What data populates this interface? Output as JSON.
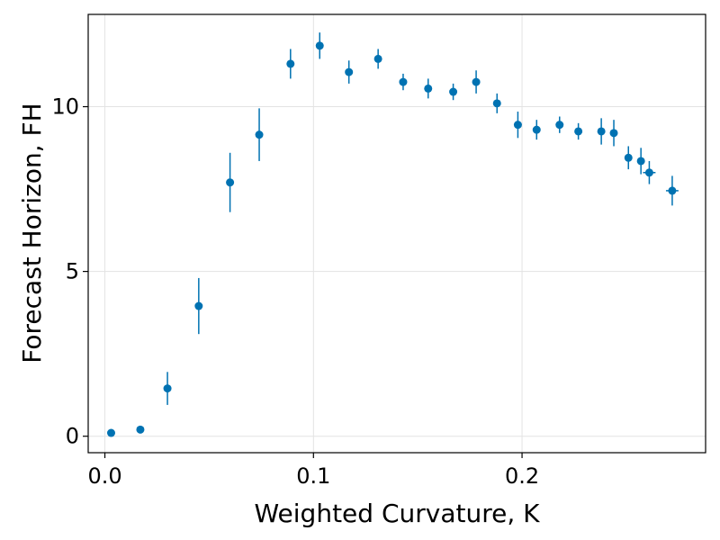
{
  "chart_data": {
    "type": "scatter",
    "title": "",
    "xlabel": "Weighted Curvature, K",
    "ylabel": "Forecast Horizon, FH",
    "xlim": [
      -0.008,
      0.288
    ],
    "ylim": [
      -0.5,
      12.8
    ],
    "x_ticks": [
      0.0,
      0.1,
      0.2
    ],
    "x_tick_labels": [
      "0.0",
      "0.1",
      "0.2"
    ],
    "y_ticks": [
      0,
      5,
      10
    ],
    "y_tick_labels": [
      "0",
      "5",
      "10"
    ],
    "grid": true,
    "legend": "none",
    "color": "#0072b2",
    "points": [
      {
        "x": 0.003,
        "y": 0.1,
        "yerr": 0.0
      },
      {
        "x": 0.017,
        "y": 0.2,
        "yerr": 0.0
      },
      {
        "x": 0.03,
        "y": 1.45,
        "yerr": 0.5
      },
      {
        "x": 0.045,
        "y": 3.95,
        "yerr": 0.85
      },
      {
        "x": 0.06,
        "y": 7.7,
        "yerr": 0.9
      },
      {
        "x": 0.074,
        "y": 9.15,
        "yerr": 0.8
      },
      {
        "x": 0.089,
        "y": 11.3,
        "yerr": 0.45
      },
      {
        "x": 0.103,
        "y": 11.85,
        "yerr": 0.4
      },
      {
        "x": 0.117,
        "y": 11.05,
        "yerr": 0.35
      },
      {
        "x": 0.131,
        "y": 11.45,
        "yerr": 0.3
      },
      {
        "x": 0.143,
        "y": 10.75,
        "yerr": 0.25
      },
      {
        "x": 0.155,
        "y": 10.55,
        "yerr": 0.3
      },
      {
        "x": 0.167,
        "y": 10.45,
        "yerr": 0.25
      },
      {
        "x": 0.178,
        "y": 10.75,
        "yerr": 0.35
      },
      {
        "x": 0.188,
        "y": 10.1,
        "yerr": 0.3
      },
      {
        "x": 0.198,
        "y": 9.45,
        "yerr": 0.4
      },
      {
        "x": 0.207,
        "y": 9.3,
        "yerr": 0.3
      },
      {
        "x": 0.218,
        "y": 9.45,
        "yerr": 0.25
      },
      {
        "x": 0.227,
        "y": 9.25,
        "yerr": 0.25
      },
      {
        "x": 0.238,
        "y": 9.25,
        "yerr": 0.4
      },
      {
        "x": 0.244,
        "y": 9.2,
        "yerr": 0.4
      },
      {
        "x": 0.251,
        "y": 8.45,
        "yerr": 0.35
      },
      {
        "x": 0.257,
        "y": 8.35,
        "yerr": 0.4
      },
      {
        "x": 0.261,
        "y": 8.0,
        "yerr": 0.35,
        "xerr": 0.003
      },
      {
        "x": 0.272,
        "y": 7.45,
        "yerr": 0.45,
        "xerr": 0.003
      }
    ]
  }
}
